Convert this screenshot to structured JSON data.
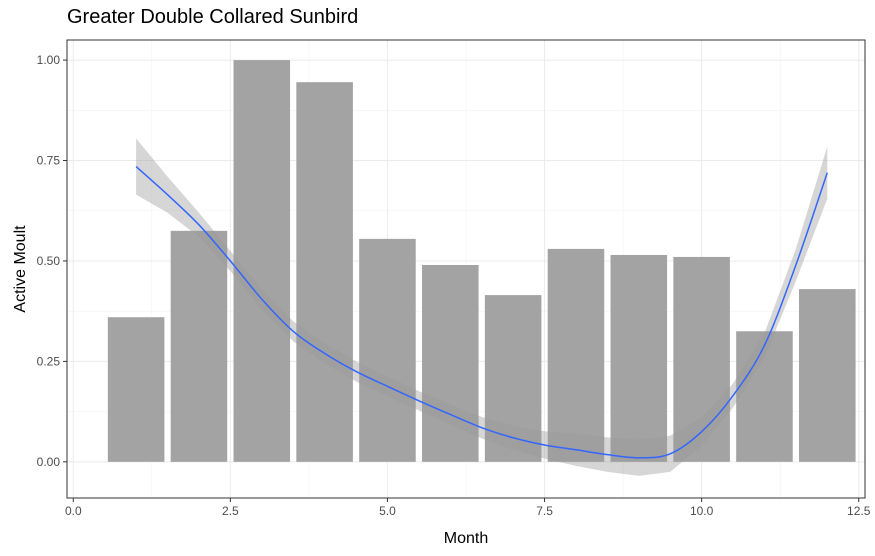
{
  "chart_data": {
    "type": "bar",
    "title": "Greater Double Collared Sunbird",
    "xlabel": "Month",
    "ylabel": "Active Moult",
    "xlim": [
      -0.1,
      12.6
    ],
    "ylim": [
      -0.09,
      1.05
    ],
    "x_ticks": [
      {
        "value": 0,
        "label": "0.0"
      },
      {
        "value": 2.5,
        "label": "2.5"
      },
      {
        "value": 5,
        "label": "5.0"
      },
      {
        "value": 7.5,
        "label": "7.5"
      },
      {
        "value": 10,
        "label": "10.0"
      },
      {
        "value": 12.5,
        "label": "12.5"
      }
    ],
    "y_ticks": [
      {
        "value": 0,
        "label": "0.00"
      },
      {
        "value": 0.25,
        "label": "0.25"
      },
      {
        "value": 0.5,
        "label": "0.50"
      },
      {
        "value": 0.75,
        "label": "0.75"
      },
      {
        "value": 1,
        "label": "1.00"
      }
    ],
    "grid": true,
    "bar_color": "#a3a3a3",
    "bar_width": 0.9,
    "bars": [
      {
        "x": 1,
        "value": 0.36
      },
      {
        "x": 2,
        "value": 0.575
      },
      {
        "x": 3,
        "value": 1.0
      },
      {
        "x": 4,
        "value": 0.945
      },
      {
        "x": 5,
        "value": 0.555
      },
      {
        "x": 6,
        "value": 0.49
      },
      {
        "x": 7,
        "value": 0.415
      },
      {
        "x": 8,
        "value": 0.53
      },
      {
        "x": 9,
        "value": 0.515
      },
      {
        "x": 10,
        "value": 0.51
      },
      {
        "x": 11,
        "value": 0.325
      },
      {
        "x": 12,
        "value": 0.43
      }
    ],
    "smooth": {
      "color": "#3366ff",
      "band_color": "#999999",
      "points": [
        {
          "x": 1.0,
          "y": 0.735,
          "lo": 0.665,
          "hi": 0.805
        },
        {
          "x": 1.5,
          "y": 0.665,
          "lo": 0.62,
          "hi": 0.71
        },
        {
          "x": 2.0,
          "y": 0.59,
          "lo": 0.56,
          "hi": 0.62
        },
        {
          "x": 2.5,
          "y": 0.5,
          "lo": 0.475,
          "hi": 0.525
        },
        {
          "x": 3.0,
          "y": 0.405,
          "lo": 0.38,
          "hi": 0.43
        },
        {
          "x": 3.5,
          "y": 0.325,
          "lo": 0.3,
          "hi": 0.35
        },
        {
          "x": 4.0,
          "y": 0.27,
          "lo": 0.245,
          "hi": 0.295
        },
        {
          "x": 4.5,
          "y": 0.225,
          "lo": 0.2,
          "hi": 0.25
        },
        {
          "x": 5.0,
          "y": 0.188,
          "lo": 0.164,
          "hi": 0.212
        },
        {
          "x": 5.5,
          "y": 0.152,
          "lo": 0.128,
          "hi": 0.176
        },
        {
          "x": 6.0,
          "y": 0.118,
          "lo": 0.093,
          "hi": 0.143
        },
        {
          "x": 6.5,
          "y": 0.085,
          "lo": 0.058,
          "hi": 0.112
        },
        {
          "x": 7.0,
          "y": 0.06,
          "lo": 0.03,
          "hi": 0.09
        },
        {
          "x": 7.5,
          "y": 0.042,
          "lo": 0.008,
          "hi": 0.076
        },
        {
          "x": 8.0,
          "y": 0.03,
          "lo": -0.01,
          "hi": 0.07
        },
        {
          "x": 8.5,
          "y": 0.018,
          "lo": -0.025,
          "hi": 0.061
        },
        {
          "x": 9.0,
          "y": 0.01,
          "lo": -0.035,
          "hi": 0.055
        },
        {
          "x": 9.5,
          "y": 0.02,
          "lo": -0.025,
          "hi": 0.065
        },
        {
          "x": 10.0,
          "y": 0.075,
          "lo": 0.04,
          "hi": 0.11
        },
        {
          "x": 10.5,
          "y": 0.165,
          "lo": 0.135,
          "hi": 0.195
        },
        {
          "x": 11.0,
          "y": 0.29,
          "lo": 0.26,
          "hi": 0.32
        },
        {
          "x": 11.5,
          "y": 0.49,
          "lo": 0.45,
          "hi": 0.53
        },
        {
          "x": 12.0,
          "y": 0.72,
          "lo": 0.655,
          "hi": 0.785
        }
      ]
    }
  }
}
